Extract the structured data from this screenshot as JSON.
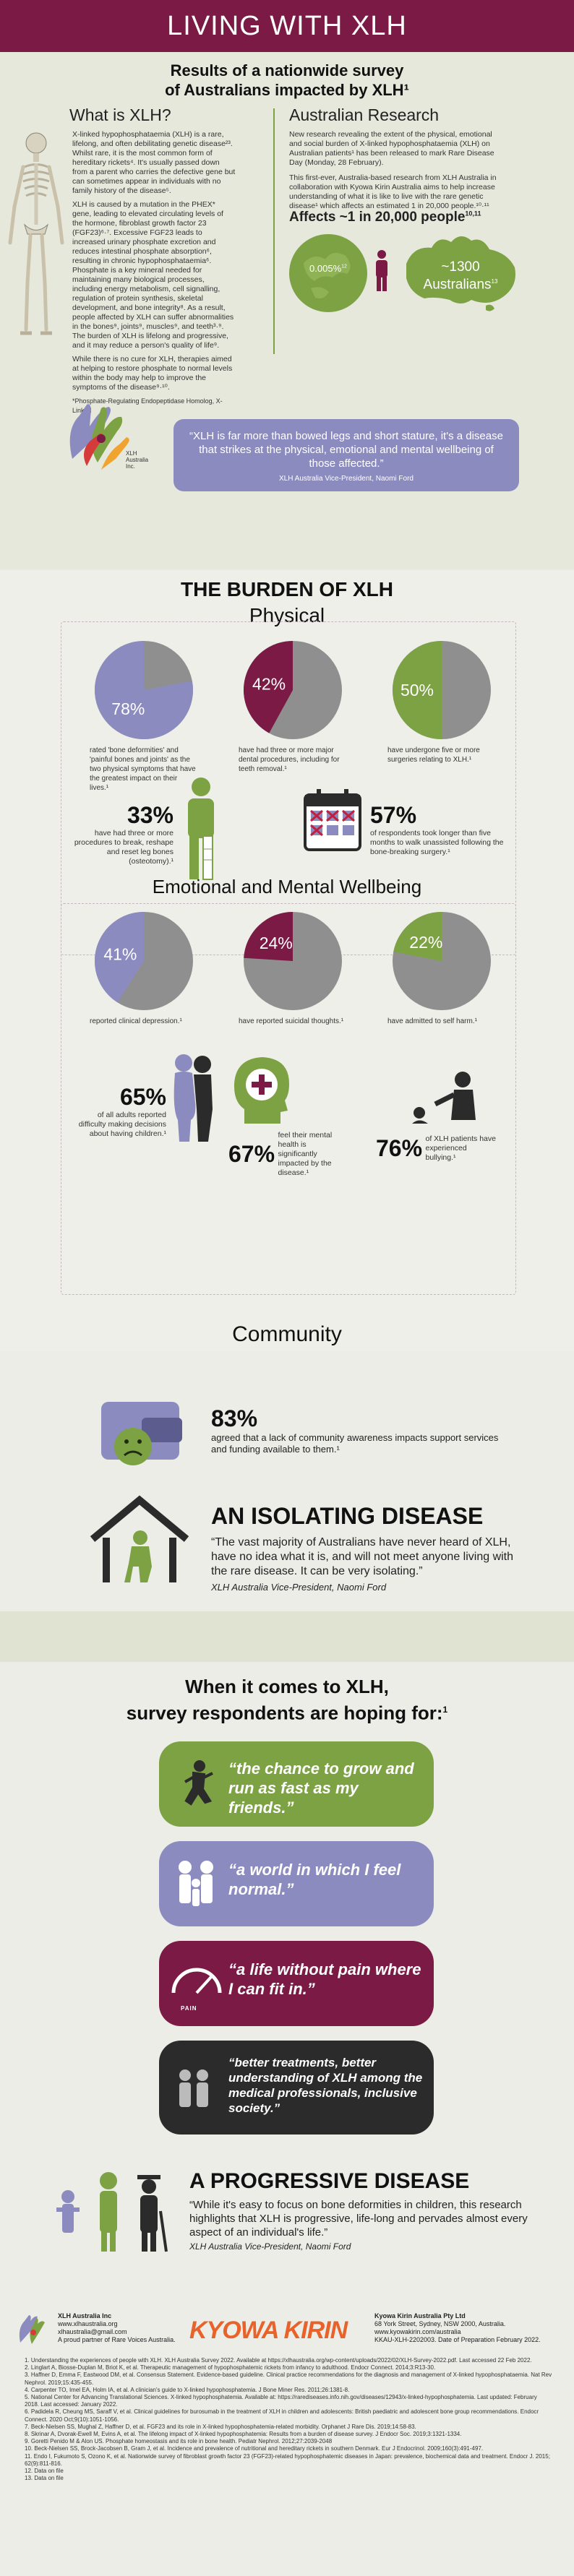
{
  "banner": {
    "title": "LIVING WITH XLH"
  },
  "survey": {
    "title_line1": "Results of a nationwide survey",
    "title_line2": "of Australians impacted by XLH¹"
  },
  "what_is": {
    "heading": "What is XLH?",
    "p1": "X-linked hypophosphataemia (XLH) is a rare, lifelong, and often debilitating genetic disease²³. Whilst rare, it is the most common form of hereditary rickets⁴. It's usually passed down from a parent who carries the defective gene but can sometimes appear in individuals with no family history of the disease⁵.",
    "p2": "XLH is caused by a mutation in the PHEX* gene, leading to elevated circulating levels of the hormone, fibroblast growth factor 23 (FGF23)⁶·⁷. Excessive FGF23 leads to increased urinary phosphate excretion and reduces intestinal phosphate absorption⁶, resulting in chronic hypophosphataemia⁶. Phosphate is a key mineral needed for maintaining many biological processes, including energy metabolism, cell signalling, regulation of protein synthesis, skeletal development, and bone integrity⁸. As a result, people affected by XLH can suffer abnormalities in the bones⁹, joints⁹, muscles⁹, and teeth³·⁹. The burden of XLH is lifelong and progressive, and it may reduce a person's quality of life⁹.",
    "p3": "While there is no cure for XLH, therapies aimed at helping to restore phosphate to normal levels within the body may help to improve the symptoms of the disease⁹·¹⁰.",
    "footnote": "*Phosphate-Regulating Endopeptidase Homolog, X-Linked"
  },
  "research": {
    "heading": "Australian Research",
    "p1": "New research revealing the extent of the physical, emotional and social burden of X-linked hypophosphataemia (XLH) on Australian patients¹ has been released to mark Rare Disease Day (Monday, 28 February).",
    "p2": "This first-ever, Australia-based research from XLH Australia in collaboration with Kyowa Kirin Australia aims to help increase understanding of what it is like to live with the rare genetic disease¹ which affects an estimated 1 in 20,000 people.¹⁰·¹¹",
    "affects": "Affects ~1 in 20,000 people",
    "affects_sup": "10,11",
    "globe_pct": "0.005%",
    "globe_sup": "12",
    "australia_count": "~1300",
    "australia_label": "Australians",
    "australia_sup": "13"
  },
  "logo_small": {
    "name": "XLH Australia Inc."
  },
  "quote1": {
    "text": "“XLH is far more than bowed legs and short stature, it's a disease that strikes at the physical, emotional and mental wellbeing of those affected.”",
    "attribution": "XLH Australia Vice-President, Naomi Ford"
  },
  "burden": {
    "title": "THE BURDEN OF XLH",
    "physical": "Physical"
  },
  "physical_pies": [
    {
      "pct": 78,
      "label": "78%",
      "caption": "rated 'bone deformities' and 'painful bones and joints' as the two physical symptoms that have the greatest impact on their lives.¹",
      "color": "#8c8bc0"
    },
    {
      "pct": 42,
      "label": "42%",
      "caption": "have had three or more major dental procedures, including for teeth removal.¹",
      "color": "#7a1a45"
    },
    {
      "pct": 50,
      "label": "50%",
      "caption": "have undergone five or more surgeries relating to XLH.¹",
      "color": "#7da244"
    }
  ],
  "phys_stats": [
    {
      "value": "33%",
      "text": "have had three or more procedures to break, reshape and reset leg bones (osteotomy).¹"
    },
    {
      "value": "57%",
      "text": "of respondents took longer than five months to walk unassisted following the bone-breaking surgery.¹"
    }
  ],
  "emotional": {
    "title": "Emotional and Mental Wellbeing"
  },
  "emotional_pies": [
    {
      "pct": 41,
      "label": "41%",
      "caption": "reported clinical depression.¹",
      "color": "#8c8bc0"
    },
    {
      "pct": 24,
      "label": "24%",
      "caption": "have reported suicidal thoughts.¹",
      "color": "#7a1a45"
    },
    {
      "pct": 22,
      "label": "22%",
      "caption": "have admitted to self harm.¹",
      "color": "#7da244"
    }
  ],
  "emo_stats": [
    {
      "value": "65%",
      "text": "of all adults reported difficulty making decisions about having children.¹"
    },
    {
      "value": "67%",
      "text": "feel their mental health is significantly impacted by the disease.¹"
    },
    {
      "value": "76%",
      "text": "of XLH patients have experienced bullying.¹"
    }
  ],
  "community": {
    "title": "Community",
    "stat_value": "83%",
    "stat_text": "agreed that a lack of community awareness impacts support services and funding available to them.¹",
    "isolating_title": "AN ISOLATING DISEASE",
    "isolating_quote": "“The vast majority of Australians have never heard of XLH, have no idea what it is, and will not meet anyone living with the rare disease. It can be very isolating.”",
    "isolating_attr": "XLH Australia Vice-President, Naomi Ford"
  },
  "hoping": {
    "title_line1": "When it comes to XLH,",
    "title_line2": "survey respondents are hoping for:",
    "title_sup": "1",
    "bubbles": [
      {
        "text": "“the chance to grow and run as fast as my friends.”",
        "color": "#7da244",
        "icon": "running-child-icon"
      },
      {
        "text": "“a world in which I feel normal.”",
        "color": "#8c8bc0",
        "icon": "family-icon"
      },
      {
        "text": "“a life without pain where I can fit in.”",
        "color": "#7a1a45",
        "icon": "pain-gauge-icon"
      },
      {
        "text": "“better treatments, better understanding of XLH among the medical professionals, inclusive society.”",
        "color": "#2b2b2b",
        "icon": "people-icon"
      }
    ],
    "gauge_label": "PAIN"
  },
  "progressive": {
    "title": "A PROGRESSIVE DISEASE",
    "quote": "“While it's easy to focus on bone deformities in children, this research highlights that XLH is progressive, life-long and pervades almost every aspect of an individual's life.”",
    "attr": "XLH Australia Vice-President, Naomi Ford"
  },
  "footer": {
    "xlh_name": "XLH Australia Inc",
    "xlh_web": "www.xlhaustralia.org",
    "xlh_email": "xlhaustralia@gmail.com",
    "xlh_partner": "A proud partner of Rare Voices Australia.",
    "kk_logo": "KYOWA KIRIN",
    "kk_name": "Kyowa Kirin Australia Pty Ltd",
    "kk_addr": "68 York Street, Sydney, NSW 2000, Australia.",
    "kk_web": "www.kyowakirin.com/australia",
    "kk_code": "KKAU-XLH-2202003. Date of Preparation February 2022."
  },
  "references": [
    "1. Understanding the experiences of people with XLH. XLH Australia Survey 2022. Available at https://xlhaustralia.org/wp-content/uploads/2022/02/XLH-Survey-2022.pdf. Last accessed 22 Feb 2022.",
    "2. Linglart A, Biosse-Duplan M, Briot K, et al. Therapeutic management of hypophosphatemic rickets from infancy to adulthood. Endocr Connect. 2014;3:R13-30.",
    "3. Haffner D, Emma F, Eastwood DM, et al. Consensus Statement. Evidence-based guideline. Clinical practice recommendations for the diagnosis and management of X-linked hypophosphataemia. Nat Rev Nephrol. 2019;15:435-455.",
    "4. Carpenter TO, Imel EA, Holm IA, et al. A clinician's guide to X-linked hypophosphatemia. J Bone Miner Res. 2011;26:1381-8.",
    "5. National Center for Advancing Translational Sciences. X-linked hypophosphatemia. Available at: https://rarediseases.info.nih.gov/diseases/12943/x-linked-hypophosphatemia. Last updated: February 2018. Last accessed: January 2022.",
    "6. Padidela R, Cheung MS, Saraff V, et al. Clinical guidelines for burosumab in the treatment of XLH in children and adolescents: British paediatric and adolescent bone group recommendations. Endocr Connect. 2020 Oct;9(10):1051-1056.",
    "7. Beck-Nielsen SS, Mughal Z, Haffner D, et al. FGF23 and its role in X-linked hypophosphatemia-related morbidity. Orphanet J Rare Dis. 2019;14:58-83.",
    "8. Skrinar A, Dvorak-Ewell M, Evins A, et al. The lifelong impact of X-linked hypophosphatemia: Results from a burden of disease survey. J Endocr Soc. 2019;3:1321-1334.",
    "9. Goretti Penido M & Alon US. Phosphate homeostasis and its role in bone health. Pediatr Nephrol. 2012;27:2039-2048",
    "10. Beck-Nielsen SS, Brock-Jacobsen B, Gram J, et al. Incidence and prevalence of nutritional and hereditary rickets in southern Denmark. Eur J Endocrinol. 2009;160(3):491-497.",
    "11. Endo I, Fukumoto S, Ozono K, et al. Nationwide survey of fibroblast growth factor 23 (FGF23)-related hypophosphatemic diseases in Japan: prevalence, biochemical data and treatment. Endocr J. 2015; 62(9):811-816.",
    "12. Data on file",
    "13. Data on file"
  ]
}
